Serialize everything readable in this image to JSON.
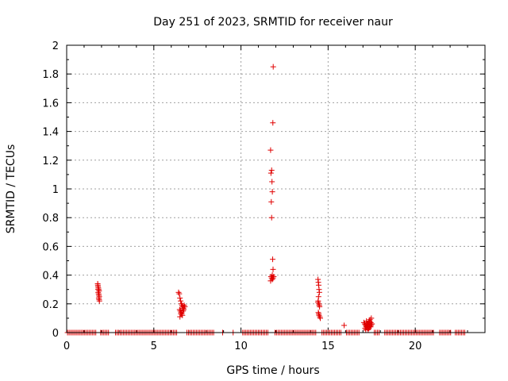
{
  "chart_data": {
    "type": "scatter",
    "title": "Day 251 of 2023, SRMTID for receiver naur",
    "xlabel": "GPS time / hours",
    "ylabel": "SRMTID / TECUs",
    "xlim": [
      0,
      24
    ],
    "ylim": [
      0,
      2
    ],
    "xticks": [
      0,
      5,
      10,
      15,
      20
    ],
    "yticks": [
      0,
      0.2,
      0.4,
      0.6,
      0.8,
      1,
      1.2,
      1.4,
      1.6,
      1.8,
      2
    ],
    "xtick_labels": [
      "0",
      "5",
      "10",
      "15",
      "20"
    ],
    "ytick_labels": [
      "0",
      "0.2",
      "0.4",
      "0.6",
      "0.8",
      "1",
      "1.2",
      "1.4",
      "1.6",
      "1.8",
      "2"
    ],
    "grid": true,
    "marker": "+",
    "color": "#e00000",
    "series": [
      {
        "name": "SRMTID",
        "clusters": [
          {
            "x": [
              1.78,
              1.8,
              1.82,
              1.84,
              1.86,
              1.79,
              1.81,
              1.83,
              1.85,
              1.87,
              1.8,
              1.84,
              1.86,
              1.88
            ],
            "y": [
              0.34,
              0.32,
              0.31,
              0.3,
              0.29,
              0.33,
              0.28,
              0.27,
              0.26,
              0.25,
              0.3,
              0.24,
              0.23,
              0.22
            ]
          },
          {
            "x": [
              6.42,
              6.46,
              6.5,
              6.54,
              6.58,
              6.62,
              6.66,
              6.7,
              6.74,
              6.78,
              6.48,
              6.52,
              6.56,
              6.6,
              6.64,
              6.68,
              6.72,
              6.5,
              6.55,
              6.6,
              6.65
            ],
            "y": [
              0.28,
              0.27,
              0.24,
              0.22,
              0.2,
              0.19,
              0.18,
              0.17,
              0.19,
              0.18,
              0.16,
              0.15,
              0.14,
              0.13,
              0.12,
              0.15,
              0.16,
              0.11,
              0.13,
              0.14,
              0.17
            ]
          },
          {
            "x": [
              11.85,
              11.83,
              11.7,
              11.76,
              11.72,
              11.78,
              11.8,
              11.74,
              11.76,
              11.82,
              11.84,
              11.8,
              11.72,
              11.76,
              11.8,
              11.84,
              11.7,
              11.88
            ],
            "y": [
              1.85,
              1.46,
              1.27,
              1.13,
              1.11,
              1.05,
              0.98,
              0.91,
              0.8,
              0.51,
              0.44,
              0.4,
              0.39,
              0.38,
              0.37,
              0.38,
              0.36,
              0.39
            ]
          },
          {
            "x": [
              14.42,
              14.44,
              14.46,
              14.48,
              14.5,
              14.45,
              14.43,
              14.47,
              14.49,
              14.51,
              14.44,
              14.46,
              14.48,
              14.52,
              14.55,
              14.42
            ],
            "y": [
              0.37,
              0.35,
              0.33,
              0.3,
              0.28,
              0.25,
              0.22,
              0.2,
              0.19,
              0.18,
              0.14,
              0.13,
              0.12,
              0.11,
              0.1,
              0.21
            ]
          },
          {
            "x": [
              15.92
            ],
            "y": [
              0.05
            ]
          },
          {
            "x": [
              17.05,
              17.1,
              17.15,
              17.2,
              17.25,
              17.3,
              17.35,
              17.4,
              17.45,
              17.5,
              17.12,
              17.18,
              17.22,
              17.28,
              17.32,
              17.38,
              17.42,
              17.48,
              17.16,
              17.26,
              17.36,
              17.44,
              17.24,
              17.34,
              17.4,
              17.3,
              17.46,
              17.2,
              17.52
            ],
            "y": [
              0.07,
              0.06,
              0.05,
              0.08,
              0.04,
              0.06,
              0.05,
              0.09,
              0.07,
              0.06,
              0.03,
              0.04,
              0.05,
              0.06,
              0.07,
              0.04,
              0.05,
              0.1,
              0.02,
              0.03,
              0.08,
              0.04,
              0.06,
              0.03,
              0.07,
              0.02,
              0.05,
              0.04,
              0.06
            ]
          }
        ],
        "baseline_y": 0,
        "baseline_x_ranges": [
          [
            0.05,
            1.75
          ],
          [
            1.95,
            2.45
          ],
          [
            2.8,
            6.35
          ],
          [
            6.9,
            8.45
          ],
          [
            8.95,
            9.0
          ],
          [
            9.55,
            9.6
          ],
          [
            10.1,
            11.6
          ],
          [
            11.95,
            14.35
          ],
          [
            14.65,
            15.75
          ],
          [
            16.05,
            16.85
          ],
          [
            17.65,
            17.95
          ],
          [
            18.25,
            21.05
          ],
          [
            21.4,
            22.05
          ],
          [
            22.3,
            22.85
          ]
        ],
        "baseline_spacing_hours": 0.09
      }
    ]
  }
}
